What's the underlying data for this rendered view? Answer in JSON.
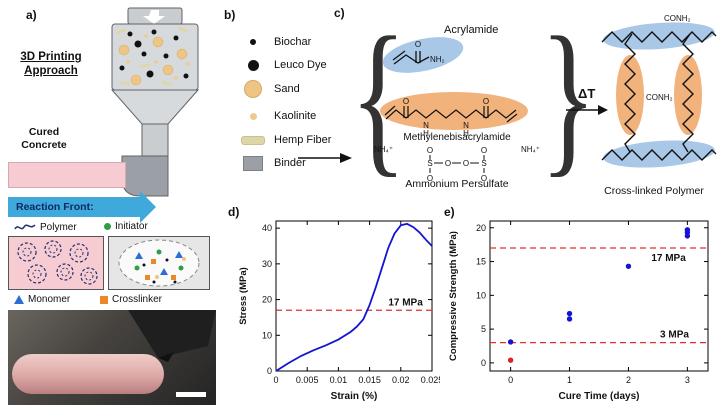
{
  "panels": {
    "a": {
      "label": "a)",
      "title": "3D Printing Approach",
      "cured_concrete_label": "Cured Concrete",
      "reaction_front_label": "Reaction Front:",
      "legend": {
        "polymer": "Polymer",
        "initiator": "Initiator",
        "monomer": "Monomer",
        "crosslinker": "Crosslinker"
      }
    },
    "b": {
      "label": "b)",
      "items": [
        {
          "label": "Biochar"
        },
        {
          "label": "Leuco Dye"
        },
        {
          "label": "Sand"
        },
        {
          "label": "Kaolinite"
        },
        {
          "label": "Hemp Fiber"
        },
        {
          "label": "Binder"
        }
      ]
    },
    "c": {
      "label": "c)",
      "brace_open": "{",
      "brace_close": "}",
      "acrylamide_label": "Acrylamide",
      "mba_label": "Methylenebisacrylamide",
      "aps_label": "Ammonium Persulfate",
      "delta_t_label": "ΔT",
      "crosslinked_label": "Cross-linked Polymer",
      "chem": {
        "o": "O",
        "n": "N",
        "h": "H",
        "s": "S",
        "nh2": "NH₂",
        "nh4": "NH₄⁺",
        "conh2": "CONH₂"
      }
    },
    "d": {
      "label": "d)"
    },
    "e": {
      "label": "e)"
    }
  },
  "colors": {
    "sand": "#eec586",
    "hemp_fiber": "#ddd6a6",
    "binder_gray": "#9aa0a6",
    "cured_concrete_pink": "#f6ccd2",
    "reaction_front_blue": "#3fa9dc",
    "initiator_green": "#2f9e44",
    "monomer_blue": "#2b6fd4",
    "crosslinker_orange": "#e8882a",
    "curve_blue": "#1414d2",
    "threshold_red": "#e03131",
    "acrylamide_highlight": "#a9c8e8",
    "crosslinker_highlight": "#f2b27c"
  },
  "chart_data": [
    {
      "id": "stress_strain",
      "type": "line",
      "xlabel": "Strain (%)",
      "ylabel": "Stress (MPa)",
      "xlim": [
        0,
        0.025
      ],
      "ylim": [
        0,
        42
      ],
      "xticks": [
        0,
        0.005,
        0.01,
        0.015,
        0.02,
        0.025
      ],
      "xtick_labels": [
        "0",
        "0.005",
        "0.01",
        "0.015",
        "0.02",
        "0.025"
      ],
      "yticks": [
        0,
        10,
        20,
        30,
        40
      ],
      "grid": false,
      "legend_position": "none",
      "series": [
        {
          "name": "stress-strain-curve",
          "type": "line",
          "color": "#1414d2",
          "x": [
            0,
            0.002,
            0.004,
            0.006,
            0.008,
            0.01,
            0.012,
            0.013,
            0.014,
            0.015,
            0.016,
            0.017,
            0.018,
            0.019,
            0.02,
            0.021,
            0.022,
            0.023,
            0.024,
            0.025
          ],
          "y": [
            0,
            2.2,
            4.2,
            5.8,
            7.2,
            8.8,
            11.0,
            12.5,
            14.5,
            18.5,
            23.5,
            29.0,
            34.5,
            38.5,
            40.8,
            41.2,
            40.3,
            38.8,
            36.8,
            35.0
          ]
        }
      ],
      "hlines": [
        {
          "y": 17,
          "label": "17 MPa",
          "color": "#e03131",
          "label_x": 0.72,
          "label_dy": -5
        }
      ]
    },
    {
      "id": "compressive_strength",
      "type": "scatter",
      "xlabel": "Cure Time (days)",
      "ylabel": "Compressive Strength (MPa)",
      "xlim": [
        -0.35,
        3.35
      ],
      "ylim": [
        -1.2,
        21
      ],
      "xticks": [
        0,
        1,
        2,
        3
      ],
      "xtick_labels": [
        "0",
        "1",
        "2",
        "3"
      ],
      "yticks": [
        0,
        5,
        10,
        15,
        20
      ],
      "grid": false,
      "legend_position": "none",
      "series": [
        {
          "name": "uncured-control",
          "type": "scatter",
          "color": "#d62728",
          "x": [
            0
          ],
          "y": [
            0.4
          ]
        },
        {
          "name": "cured-samples",
          "type": "scatter",
          "color": "#1414d2",
          "x": [
            0,
            1,
            1,
            2,
            3,
            3,
            3
          ],
          "y": [
            3.1,
            6.5,
            7.3,
            14.3,
            18.8,
            19.3,
            19.7
          ]
        }
      ],
      "hlines": [
        {
          "y": 17,
          "label": "17 MPa",
          "color": "#e03131",
          "label_x": 0.74,
          "label_dy": 13
        },
        {
          "y": 3,
          "label": "3 MPa",
          "color": "#e03131",
          "label_x": 0.78,
          "label_dy": -5
        }
      ]
    }
  ]
}
